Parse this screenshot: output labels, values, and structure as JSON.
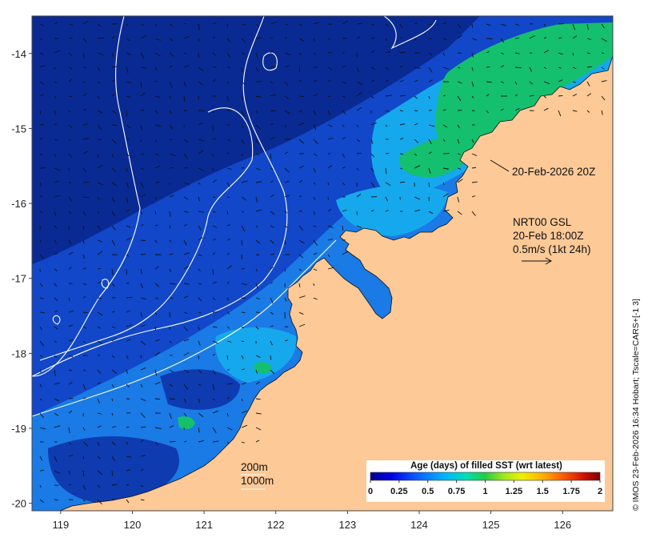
{
  "map": {
    "x_ticks": [
      "119",
      "120",
      "121",
      "122",
      "123",
      "124",
      "125",
      "126"
    ],
    "y_ticks": [
      "-14",
      "-15",
      "-16",
      "-17",
      "-18",
      "-19",
      "-20"
    ],
    "lon_range": [
      118.6,
      126.7
    ],
    "lat_range": [
      -20.1,
      -13.5
    ],
    "timestamp_label": "20-Feb-2026 20Z",
    "current_label": {
      "line1": "NRT00 GSL",
      "line2": "20-Feb 18:00Z",
      "line3": "0.5m/s (1kt 24h)"
    },
    "contour_legend": {
      "c200": "200m",
      "c1000": "1000m"
    },
    "colorbar": {
      "title": "Age (days) of filled SST (wrt latest)",
      "ticks": [
        "0",
        "0.25",
        "0.5",
        "0.75",
        "1",
        "1.25",
        "1.5",
        "1.75",
        "2"
      ],
      "range": [
        0,
        2
      ],
      "colors": [
        "#00008f",
        "#0000e6",
        "#0a5cff",
        "#00b4ff",
        "#00e0b0",
        "#22cc44",
        "#9de81a",
        "#f0f000",
        "#ffb000",
        "#ff5a00",
        "#d01000",
        "#800000"
      ]
    },
    "credit": "© IMOS 23-Feb-2026 16:34 Hobart; Tscale=CARS+[-1 3]",
    "colors": {
      "land": "#fcc997",
      "deep_ocean": "#0a2a93",
      "mid_ocean": "#1147c8",
      "shallow_ocean": "#1a7ae6",
      "cyan_patch": "#16a8ec",
      "green_patch": "#14c06e",
      "contour_line": "#ffffff",
      "vector": "#111111"
    }
  }
}
